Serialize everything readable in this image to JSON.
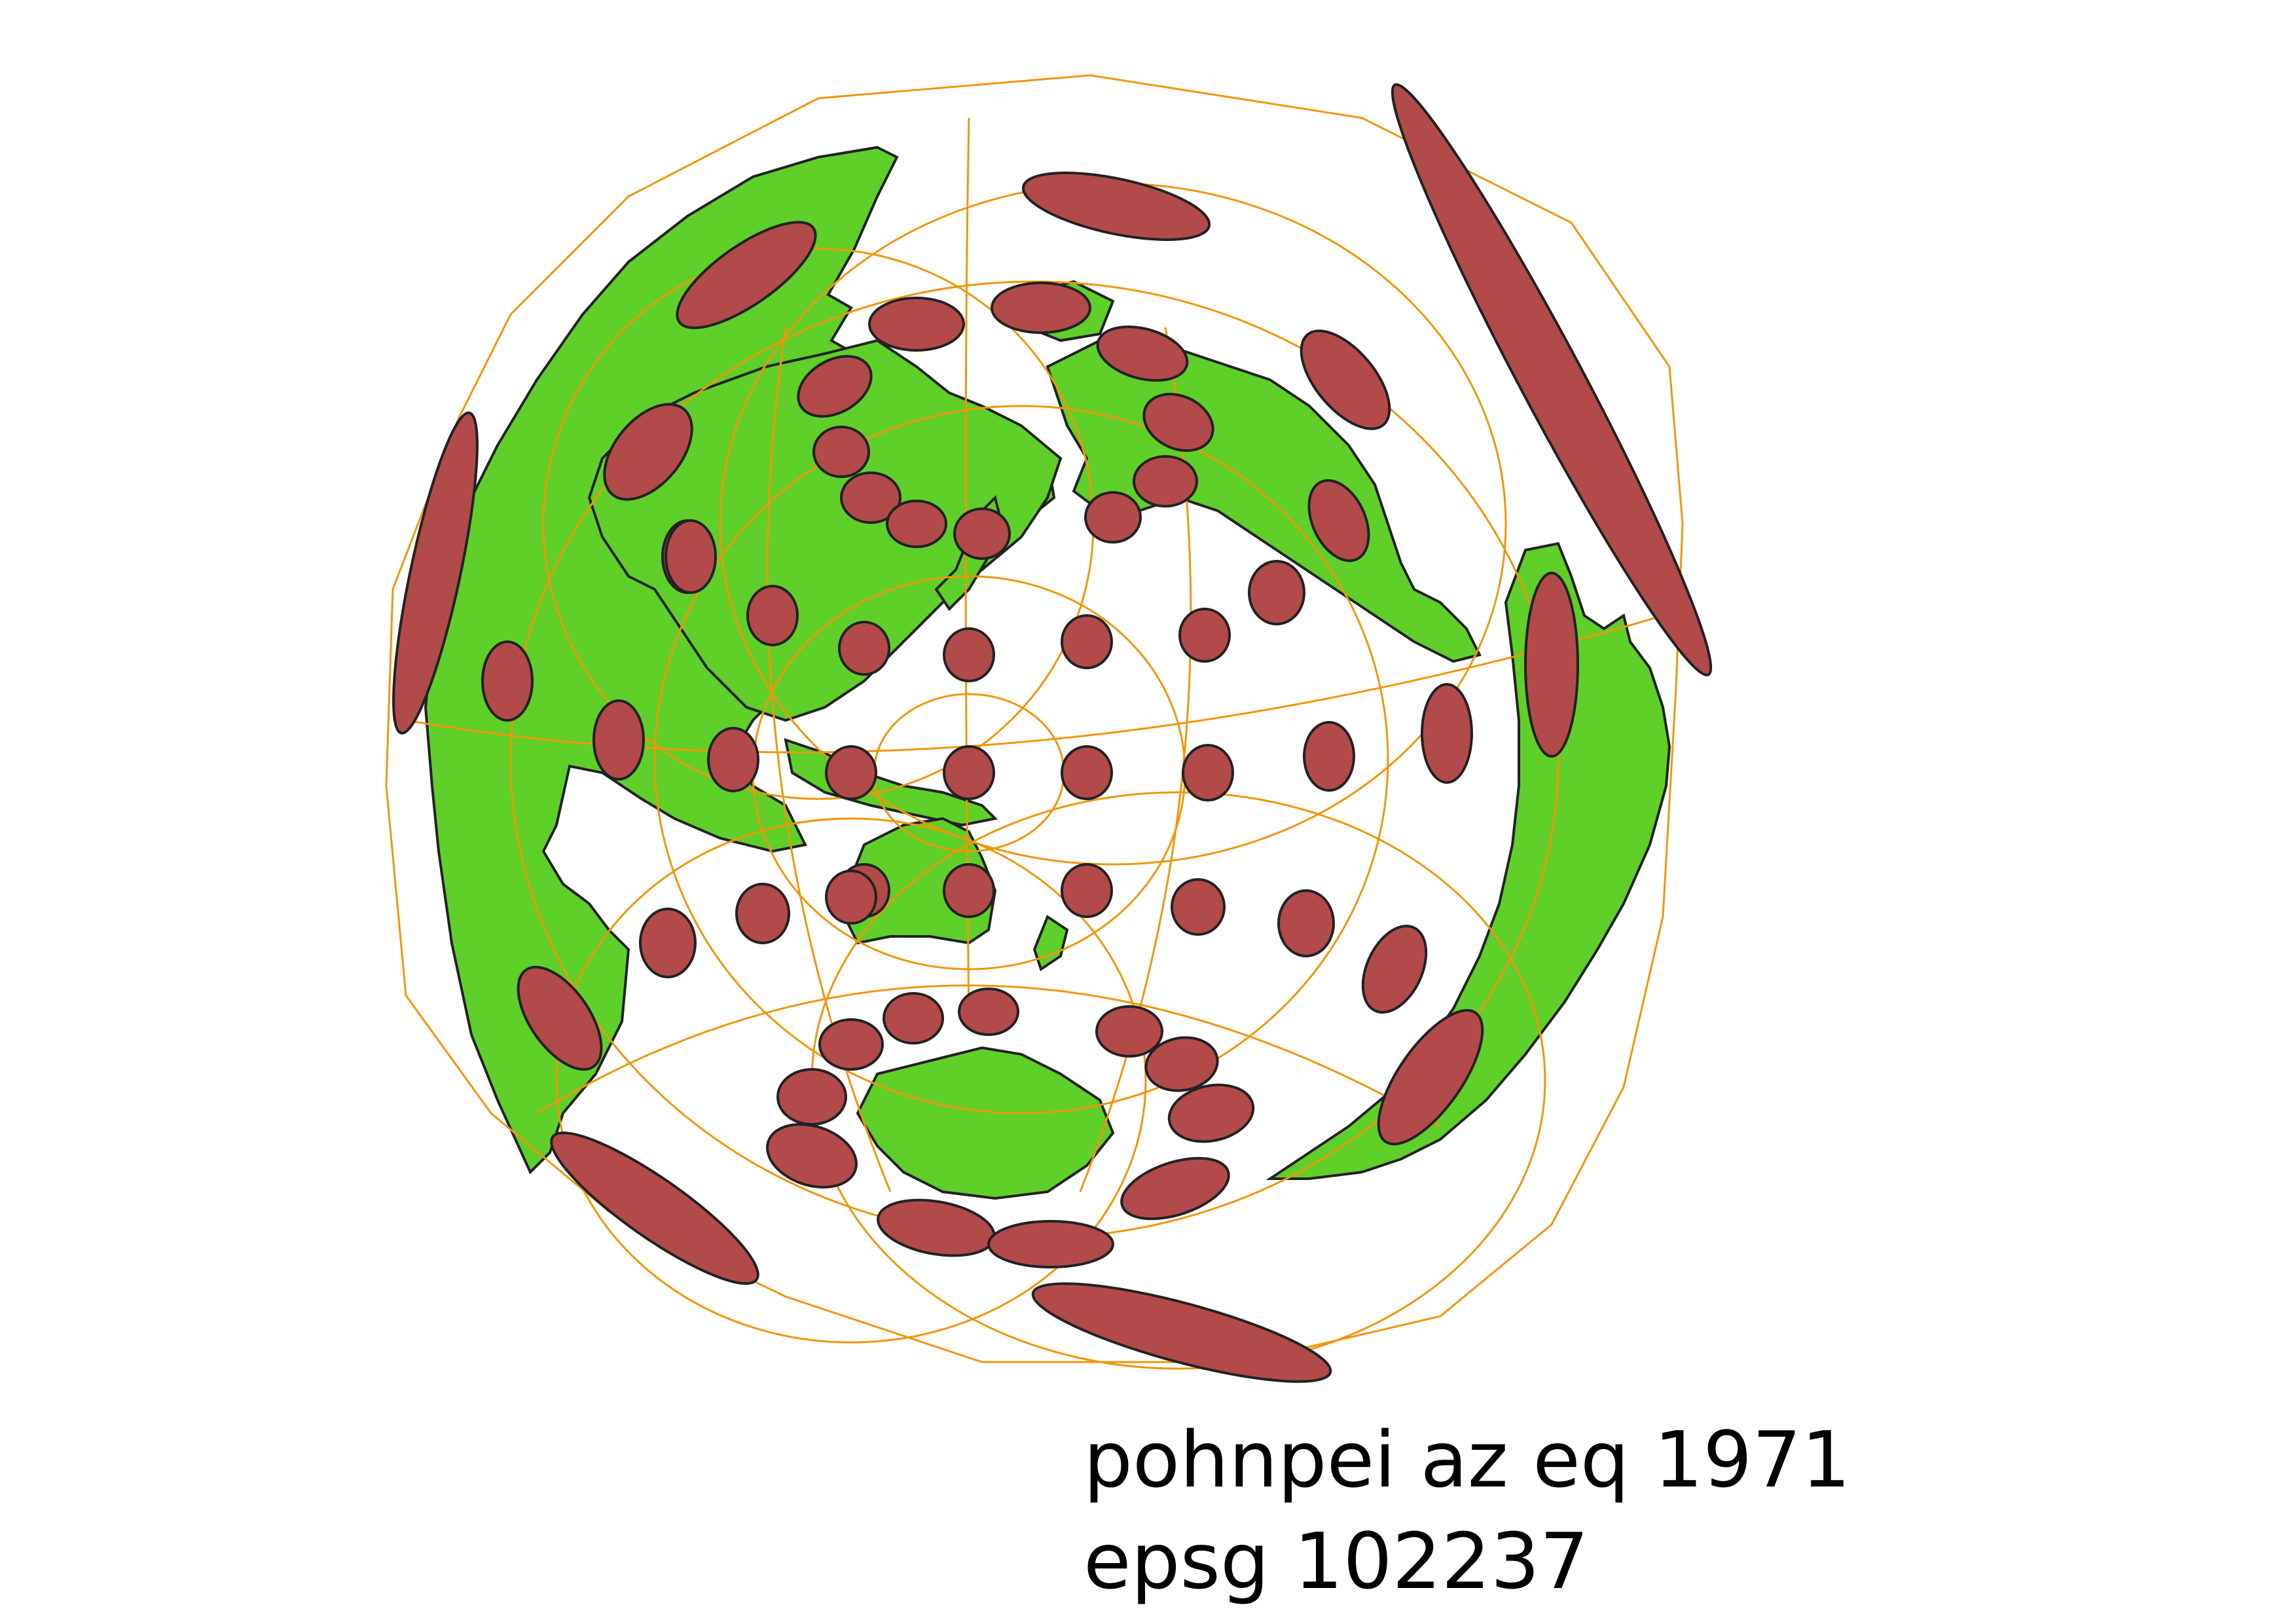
{
  "map": {
    "title_line_1": "pohnpei az eq 1971",
    "title_line_2": "epsg 102237",
    "colors": {
      "land": "#5fcf2a",
      "land_outline": "#222222",
      "graticule": "#f0960a",
      "tissot": "#b24a4a",
      "tissot_outline": "#222222",
      "background": "#ffffff"
    },
    "layers": [
      "land",
      "graticule",
      "tissot-indicatrices"
    ]
  }
}
